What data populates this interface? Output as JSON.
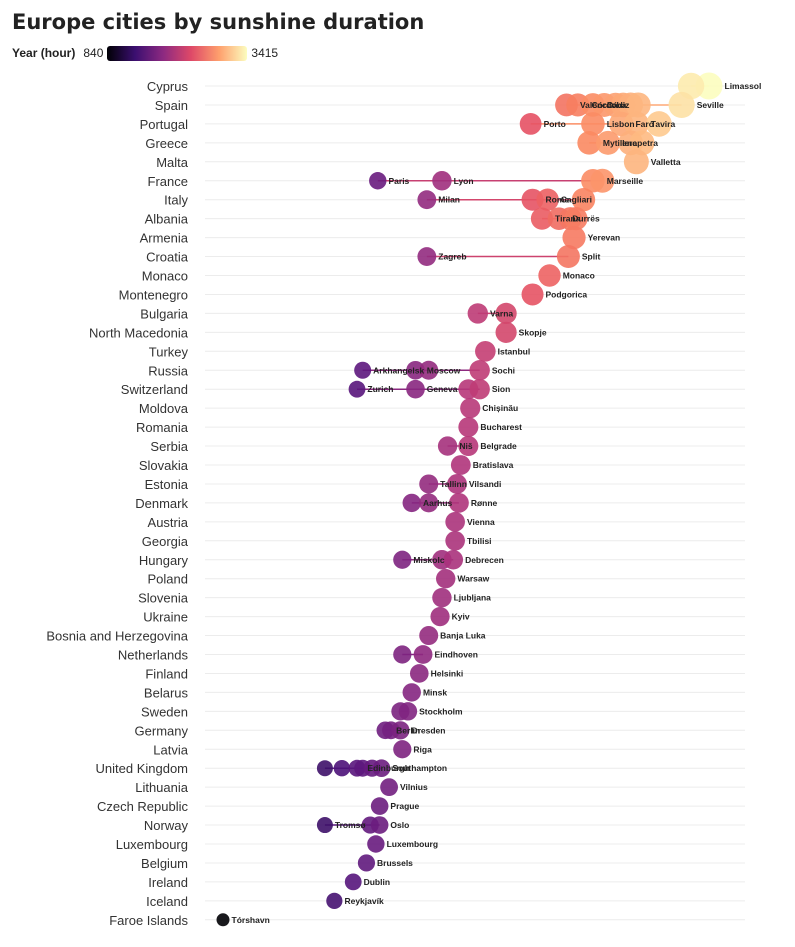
{
  "chart_data": {
    "type": "scatter",
    "title": "Europe cities by sunshine duration",
    "color_legend": {
      "label": "Year (hour)",
      "min": 840,
      "max": 3415,
      "palette": "magma"
    },
    "x_range": [
      840,
      3415
    ],
    "grid": true,
    "countries": [
      {
        "name": "Cyprus",
        "cities": [
          {
            "name": "Limassol",
            "hours": 3415,
            "label": true
          },
          {
            "name": "",
            "hours": 3320,
            "label": false
          }
        ]
      },
      {
        "name": "Spain",
        "cities": [
          {
            "name": "Valencia",
            "hours": 2660,
            "label": true
          },
          {
            "name": "Córdoba",
            "hours": 2720,
            "label": true
          },
          {
            "name": "Cádiz",
            "hours": 2800,
            "label": true
          },
          {
            "name": "",
            "hours": 2860,
            "label": false
          },
          {
            "name": "",
            "hours": 2920,
            "label": false
          },
          {
            "name": "",
            "hours": 2960,
            "label": false
          },
          {
            "name": "",
            "hours": 3000,
            "label": false
          },
          {
            "name": "",
            "hours": 3040,
            "label": false
          },
          {
            "name": "Seville",
            "hours": 3270,
            "label": true
          }
        ]
      },
      {
        "name": "Portugal",
        "cities": [
          {
            "name": "Porto",
            "hours": 2470,
            "label": true
          },
          {
            "name": "Lisbon",
            "hours": 2800,
            "label": true
          },
          {
            "name": "Faro",
            "hours": 2950,
            "label": true
          },
          {
            "name": "Tavira",
            "hours": 3030,
            "label": true
          },
          {
            "name": "",
            "hours": 3150,
            "label": false
          }
        ]
      },
      {
        "name": "Greece",
        "cities": [
          {
            "name": "Mytilene",
            "hours": 2780,
            "label": true
          },
          {
            "name": "Ierapetra",
            "hours": 2880,
            "label": true
          },
          {
            "name": "",
            "hours": 3000,
            "label": false
          },
          {
            "name": "",
            "hours": 3060,
            "label": false
          }
        ]
      },
      {
        "name": "Malta",
        "cities": [
          {
            "name": "Valletta",
            "hours": 3030,
            "label": true
          }
        ]
      },
      {
        "name": "France",
        "cities": [
          {
            "name": "Paris",
            "hours": 1660,
            "label": true
          },
          {
            "name": "Lyon",
            "hours": 2000,
            "label": true
          },
          {
            "name": "Marseille",
            "hours": 2800,
            "label": true
          },
          {
            "name": "",
            "hours": 2850,
            "label": false
          }
        ]
      },
      {
        "name": "Italy",
        "cities": [
          {
            "name": "Milan",
            "hours": 1920,
            "label": true
          },
          {
            "name": "Rome",
            "hours": 2480,
            "label": true
          },
          {
            "name": "Cagliari",
            "hours": 2560,
            "label": true
          },
          {
            "name": "",
            "hours": 2750,
            "label": false
          }
        ]
      },
      {
        "name": "Albania",
        "cities": [
          {
            "name": "Tirana",
            "hours": 2530,
            "label": true
          },
          {
            "name": "Durrës",
            "hours": 2620,
            "label": true
          },
          {
            "name": "",
            "hours": 2680,
            "label": false
          },
          {
            "name": "",
            "hours": 2710,
            "label": false
          }
        ]
      },
      {
        "name": "Armenia",
        "cities": [
          {
            "name": "Yerevan",
            "hours": 2700,
            "label": true
          }
        ]
      },
      {
        "name": "Croatia",
        "cities": [
          {
            "name": "Zagreb",
            "hours": 1920,
            "label": true
          },
          {
            "name": "Split",
            "hours": 2670,
            "label": true
          }
        ]
      },
      {
        "name": "Monaco",
        "cities": [
          {
            "name": "Monaco",
            "hours": 2570,
            "label": true
          }
        ]
      },
      {
        "name": "Montenegro",
        "cities": [
          {
            "name": "Podgorica",
            "hours": 2480,
            "label": true
          }
        ]
      },
      {
        "name": "Bulgaria",
        "cities": [
          {
            "name": "Varna",
            "hours": 2190,
            "label": true
          },
          {
            "name": "",
            "hours": 2340,
            "label": false
          }
        ]
      },
      {
        "name": "North Macedonia",
        "cities": [
          {
            "name": "Skopje",
            "hours": 2340,
            "label": true
          }
        ]
      },
      {
        "name": "Turkey",
        "cities": [
          {
            "name": "Istanbul",
            "hours": 2230,
            "label": true
          }
        ]
      },
      {
        "name": "Russia",
        "cities": [
          {
            "name": "Arkhangelsk",
            "hours": 1580,
            "label": true
          },
          {
            "name": "Moscow",
            "hours": 1860,
            "label": true
          },
          {
            "name": "",
            "hours": 1930,
            "label": false
          },
          {
            "name": "Sochi",
            "hours": 2200,
            "label": true
          }
        ]
      },
      {
        "name": "Switzerland",
        "cities": [
          {
            "name": "Zurich",
            "hours": 1550,
            "label": true
          },
          {
            "name": "Geneva",
            "hours": 1860,
            "label": true
          },
          {
            "name": "",
            "hours": 2140,
            "label": false
          },
          {
            "name": "Sion",
            "hours": 2200,
            "label": true
          }
        ]
      },
      {
        "name": "Moldova",
        "cities": [
          {
            "name": "Chișinău",
            "hours": 2150,
            "label": true
          }
        ]
      },
      {
        "name": "Romania",
        "cities": [
          {
            "name": "Bucharest",
            "hours": 2140,
            "label": true
          }
        ]
      },
      {
        "name": "Serbia",
        "cities": [
          {
            "name": "Niš",
            "hours": 2030,
            "label": true
          },
          {
            "name": "Belgrade",
            "hours": 2140,
            "label": true
          }
        ]
      },
      {
        "name": "Slovakia",
        "cities": [
          {
            "name": "Bratislava",
            "hours": 2100,
            "label": true
          }
        ]
      },
      {
        "name": "Estonia",
        "cities": [
          {
            "name": "Tallinn",
            "hours": 1930,
            "label": true
          },
          {
            "name": "Vilsandi",
            "hours": 2080,
            "label": true
          }
        ]
      },
      {
        "name": "Denmark",
        "cities": [
          {
            "name": "Aarhus",
            "hours": 1840,
            "label": true
          },
          {
            "name": "",
            "hours": 1930,
            "label": false
          },
          {
            "name": "Rønne",
            "hours": 2090,
            "label": true
          }
        ]
      },
      {
        "name": "Austria",
        "cities": [
          {
            "name": "Vienna",
            "hours": 2070,
            "label": true
          }
        ]
      },
      {
        "name": "Georgia",
        "cities": [
          {
            "name": "Tbilisi",
            "hours": 2070,
            "label": true
          }
        ]
      },
      {
        "name": "Hungary",
        "cities": [
          {
            "name": "Miskolc",
            "hours": 1790,
            "label": true
          },
          {
            "name": "",
            "hours": 2000,
            "label": false
          },
          {
            "name": "Debrecen",
            "hours": 2060,
            "label": true
          }
        ]
      },
      {
        "name": "Poland",
        "cities": [
          {
            "name": "Warsaw",
            "hours": 2020,
            "label": true
          }
        ]
      },
      {
        "name": "Slovenia",
        "cities": [
          {
            "name": "Ljubljana",
            "hours": 2000,
            "label": true
          }
        ]
      },
      {
        "name": "Ukraine",
        "cities": [
          {
            "name": "Kyiv",
            "hours": 1990,
            "label": true
          }
        ]
      },
      {
        "name": "Bosnia and Herzegovina",
        "cities": [
          {
            "name": "Banja Luka",
            "hours": 1930,
            "label": true
          }
        ]
      },
      {
        "name": "Netherlands",
        "cities": [
          {
            "name": "",
            "hours": 1790,
            "label": false
          },
          {
            "name": "Eindhoven",
            "hours": 1900,
            "label": true
          }
        ]
      },
      {
        "name": "Finland",
        "cities": [
          {
            "name": "Helsinki",
            "hours": 1880,
            "label": true
          }
        ]
      },
      {
        "name": "Belarus",
        "cities": [
          {
            "name": "Minsk",
            "hours": 1840,
            "label": true
          }
        ]
      },
      {
        "name": "Sweden",
        "cities": [
          {
            "name": "",
            "hours": 1780,
            "label": false
          },
          {
            "name": "Stockholm",
            "hours": 1820,
            "label": true
          }
        ]
      },
      {
        "name": "Germany",
        "cities": [
          {
            "name": "Berlin",
            "hours": 1700,
            "label": true
          },
          {
            "name": "",
            "hours": 1730,
            "label": false
          },
          {
            "name": "Dresden",
            "hours": 1780,
            "label": true
          }
        ]
      },
      {
        "name": "Latvia",
        "cities": [
          {
            "name": "Riga",
            "hours": 1790,
            "label": true
          }
        ]
      },
      {
        "name": "United Kingdom",
        "cities": [
          {
            "name": "",
            "hours": 1380,
            "label": false
          },
          {
            "name": "",
            "hours": 1470,
            "label": false
          },
          {
            "name": "Edinburgh",
            "hours": 1550,
            "label": true
          },
          {
            "name": "",
            "hours": 1580,
            "label": false
          },
          {
            "name": "",
            "hours": 1630,
            "label": false
          },
          {
            "name": "Southampton",
            "hours": 1680,
            "label": true
          }
        ]
      },
      {
        "name": "Lithuania",
        "cities": [
          {
            "name": "Vilnius",
            "hours": 1720,
            "label": true
          }
        ]
      },
      {
        "name": "Czech Republic",
        "cities": [
          {
            "name": "Prague",
            "hours": 1670,
            "label": true
          }
        ]
      },
      {
        "name": "Norway",
        "cities": [
          {
            "name": "Tromsø",
            "hours": 1380,
            "label": true
          },
          {
            "name": "",
            "hours": 1620,
            "label": false
          },
          {
            "name": "Oslo",
            "hours": 1670,
            "label": true
          }
        ]
      },
      {
        "name": "Luxembourg",
        "cities": [
          {
            "name": "Luxembourg",
            "hours": 1650,
            "label": true
          }
        ]
      },
      {
        "name": "Belgium",
        "cities": [
          {
            "name": "Brussels",
            "hours": 1600,
            "label": true
          }
        ]
      },
      {
        "name": "Ireland",
        "cities": [
          {
            "name": "Dublin",
            "hours": 1530,
            "label": true
          }
        ]
      },
      {
        "name": "Iceland",
        "cities": [
          {
            "name": "Reykjavík",
            "hours": 1430,
            "label": true
          }
        ]
      },
      {
        "name": "Faroe Islands",
        "cities": [
          {
            "name": "Tórshavn",
            "hours": 840,
            "label": true
          }
        ]
      }
    ]
  }
}
